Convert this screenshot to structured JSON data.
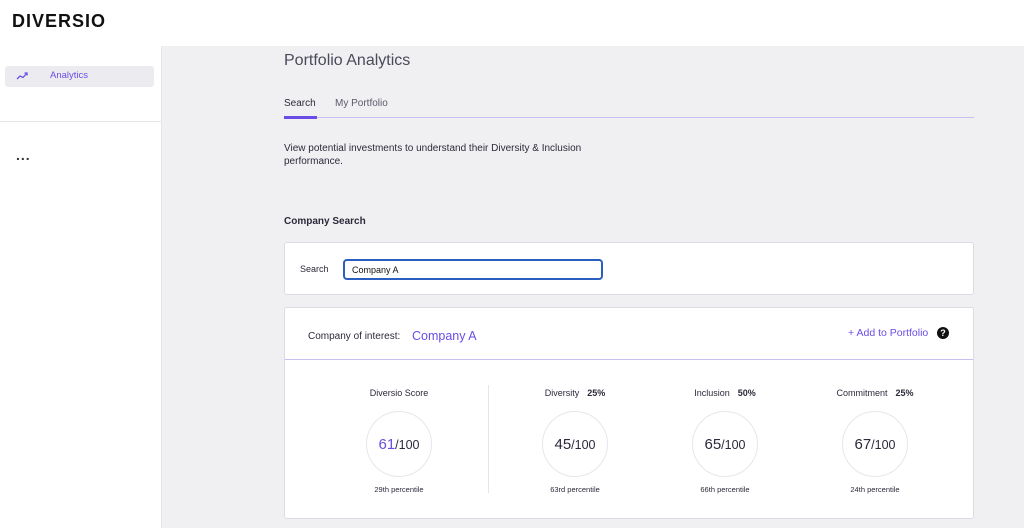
{
  "app": {
    "logo": "DIVERSIO"
  },
  "sidebar": {
    "items": [
      {
        "label": "Analytics",
        "icon": "trending-up-icon"
      }
    ],
    "more": "..."
  },
  "header": {
    "title": "Portfolio Analytics",
    "tabs": [
      {
        "label": "Search",
        "active": true
      },
      {
        "label": "My Portfolio",
        "active": false
      }
    ]
  },
  "main": {
    "description": "View potential investments to understand their Diversity & Inclusion performance.",
    "section_title": "Company Search",
    "search": {
      "label": "Search",
      "value": "Company A"
    },
    "result": {
      "company_label": "Company of interest:",
      "company_name": "Company A",
      "add_label": "+ Add to Portfolio",
      "help": "?",
      "metrics": [
        {
          "name": "Diversio Score",
          "weight": "",
          "score": "61",
          "out_of": "/100",
          "percentile": "29th percentile"
        },
        {
          "name": "Diversity",
          "weight": "25%",
          "score": "45",
          "out_of": "/100",
          "percentile": "63rd percentile"
        },
        {
          "name": "Inclusion",
          "weight": "50%",
          "score": "65",
          "out_of": "/100",
          "percentile": "66th percentile"
        },
        {
          "name": "Commitment",
          "weight": "25%",
          "score": "67",
          "out_of": "/100",
          "percentile": "24th percentile"
        }
      ]
    }
  },
  "colors": {
    "accent": "#6b4de6",
    "input_border": "#2a5fc0",
    "text": "#2b2a3a"
  }
}
